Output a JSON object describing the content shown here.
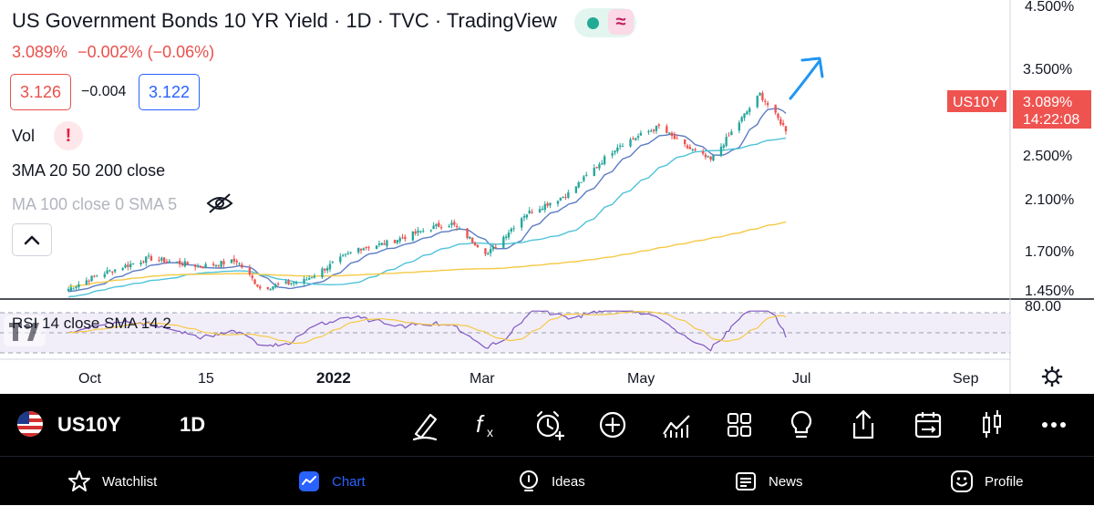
{
  "header": {
    "title": "US Government Bonds 10 YR Yield · 1D · TVC · TradingView",
    "last": "3.089%",
    "change": "−0.002% (−0.06%)",
    "sell": "3.126",
    "spread": "−0.004",
    "buy": "3.122"
  },
  "indicators": {
    "vol": "Vol",
    "vol_warning": "!",
    "ma3": "3MA 20 50 200 close",
    "ma_hidden": "MA 100 close 0 SMA 5",
    "rsi": "RSI 14 close SMA 14 2"
  },
  "price_axis": {
    "labels": [
      "4.500%",
      "3.500%",
      "2.500%",
      "2.100%",
      "1.700%",
      "1.450%"
    ],
    "rsi_label": "80.00",
    "symbol_tag": "US10Y",
    "price_tag": "3.089%",
    "countdown": "14:22:08"
  },
  "time_axis": {
    "labels": [
      "Oct",
      "15",
      "2022",
      "Mar",
      "May",
      "Jul",
      "Sep"
    ]
  },
  "chart_data": {
    "type": "candlestick",
    "symbol": "US10Y",
    "interval": "1D",
    "unit": "%",
    "y_range": [
      1.4,
      4.7
    ],
    "approx_path": [
      {
        "date": "2021-09-20",
        "close": 1.33
      },
      {
        "date": "2021-10-01",
        "close": 1.48
      },
      {
        "date": "2021-10-21",
        "close": 1.67
      },
      {
        "date": "2021-11-10",
        "close": 1.58
      },
      {
        "date": "2021-11-24",
        "close": 1.64
      },
      {
        "date": "2021-12-03",
        "close": 1.34
      },
      {
        "date": "2021-12-20",
        "close": 1.42
      },
      {
        "date": "2022-01-10",
        "close": 1.78
      },
      {
        "date": "2022-01-20",
        "close": 1.83
      },
      {
        "date": "2022-02-10",
        "close": 2.03
      },
      {
        "date": "2022-02-15",
        "close": 2.05
      },
      {
        "date": "2022-03-01",
        "close": 1.72
      },
      {
        "date": "2022-03-15",
        "close": 2.15
      },
      {
        "date": "2022-04-01",
        "close": 2.38
      },
      {
        "date": "2022-04-20",
        "close": 2.91
      },
      {
        "date": "2022-05-06",
        "close": 3.12
      },
      {
        "date": "2022-05-15",
        "close": 2.92
      },
      {
        "date": "2022-05-26",
        "close": 2.75
      },
      {
        "date": "2022-06-14",
        "close": 3.48
      },
      {
        "date": "2022-06-24",
        "close": 3.09
      }
    ],
    "rsi_level_line": 80.0,
    "forecast_arrow": "up",
    "colors": {
      "up": "#26a69a",
      "down": "#ef5350",
      "ma_slow": "#f5c945",
      "ma_mid": "#4fc3d8",
      "ma_fast": "#5c7cc4",
      "rsi": "#7e57c2",
      "rsi_sma": "#f5c945"
    }
  },
  "symbol_bar": {
    "symbol": "US10Y",
    "interval": "1D",
    "tools": [
      "draw-icon",
      "indicators-fx-icon",
      "alert-icon",
      "add-icon",
      "compare-icon",
      "layouts-icon",
      "ideas-bulb-icon",
      "share-icon",
      "replay-icon",
      "chart-type-icon",
      "more-icon"
    ]
  },
  "nav": {
    "watchlist": "Watchlist",
    "chart": "Chart",
    "ideas": "Ideas",
    "news": "News",
    "profile": "Profile"
  }
}
